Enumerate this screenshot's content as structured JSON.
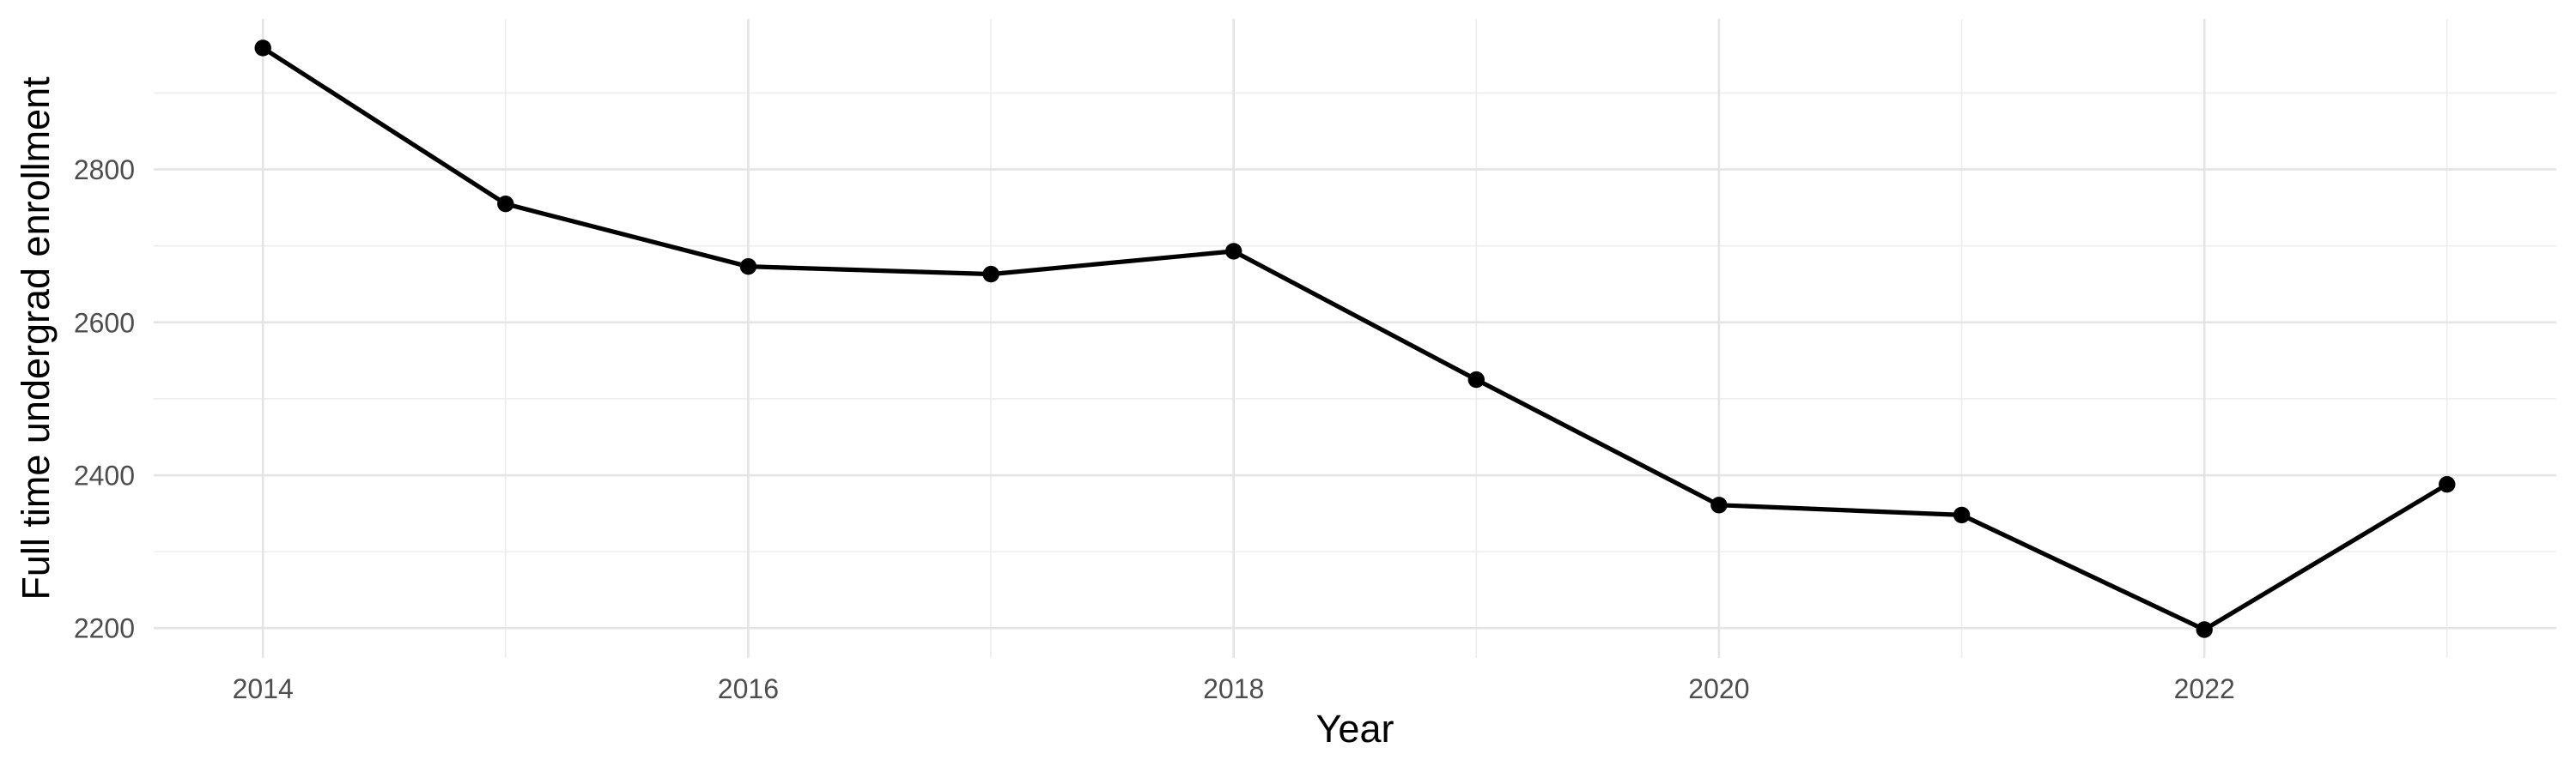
{
  "page": {
    "background_color": "#FFFFFF"
  },
  "chart_data": {
    "type": "line",
    "title": "",
    "xlabel": "Year",
    "ylabel": "Full time undergrad enrollment",
    "x": [
      2014,
      2015,
      2016,
      2017,
      2018,
      2019,
      2020,
      2021,
      2022,
      2023
    ],
    "values": [
      2959,
      2755,
      2673,
      2663,
      2693,
      2525,
      2361,
      2348,
      2198,
      2388
    ],
    "x_ticks_major": [
      2014,
      2016,
      2018,
      2020,
      2022
    ],
    "x_ticks_minor": [
      2015,
      2017,
      2019,
      2021,
      2023
    ],
    "y_ticks_major": [
      2200,
      2400,
      2600,
      2800
    ],
    "y_ticks_minor": [
      2300,
      2500,
      2700,
      2900
    ],
    "xlim": [
      2013.55,
      2023.45
    ],
    "ylim": [
      2161,
      2997
    ],
    "grid": "major-and-minor",
    "legend": false,
    "colors": {
      "line": "#000000",
      "point": "#000000",
      "grid_major": "#E4E4E4",
      "grid_minor": "#EDEDED",
      "tick_label": "#4D4D4D",
      "axis_title": "#000000",
      "background": "#FFFFFF"
    }
  }
}
